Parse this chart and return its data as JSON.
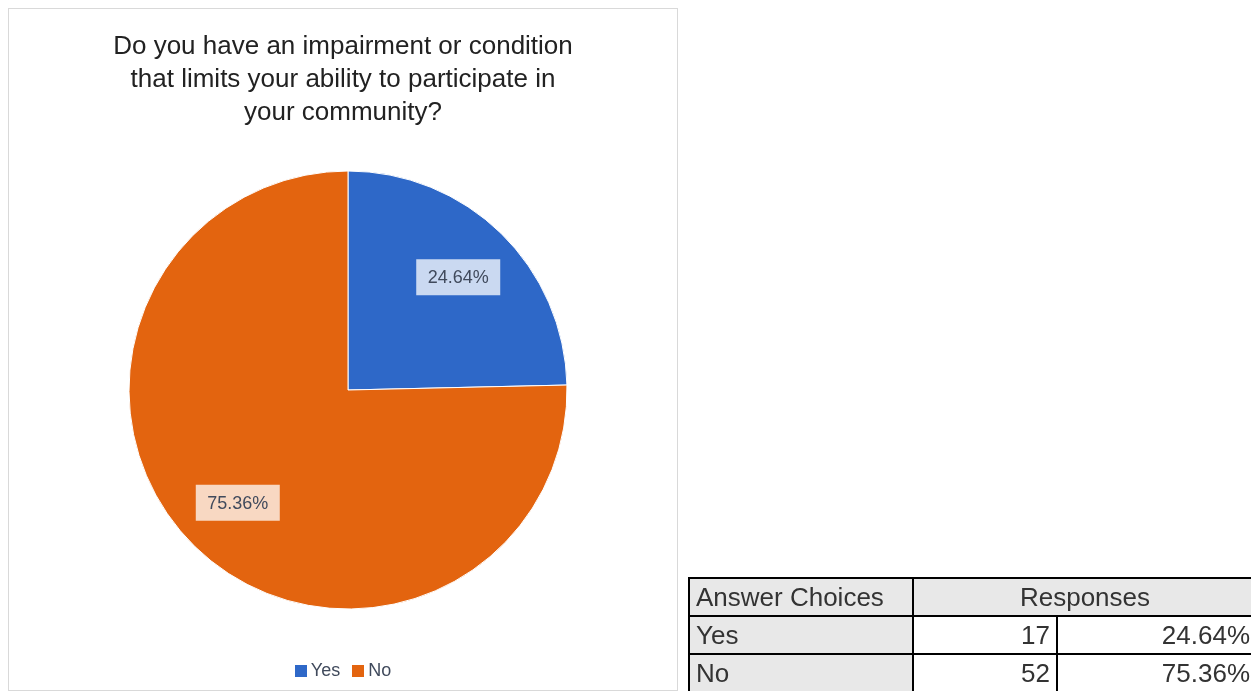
{
  "chart_data": {
    "type": "pie",
    "title": "Do you have an impairment or condition that limits your ability to participate in your community?",
    "categories": [
      "Yes",
      "No"
    ],
    "values": [
      24.64,
      75.36
    ],
    "value_labels": [
      "24.64%",
      "75.36%"
    ],
    "colors": [
      "#2e68c8",
      "#e3640f"
    ],
    "legend": "bottom",
    "annotations": [
      "Answer Choices",
      "Responses",
      "17",
      "52"
    ]
  }
}
